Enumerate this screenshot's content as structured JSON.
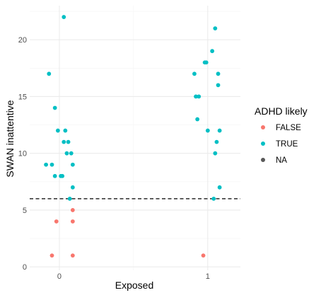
{
  "chart_data": {
    "type": "scatter",
    "title": "",
    "xlabel": "Exposed",
    "ylabel": "SWAN inattentive",
    "x_ticks": [
      0,
      1
    ],
    "x_tick_labels": [
      "0",
      "1"
    ],
    "y_ticks": [
      0,
      5,
      10,
      15,
      20
    ],
    "y_tick_labels": [
      "0",
      "5",
      "10",
      "15",
      "20"
    ],
    "xlim": [
      -0.2,
      1.22
    ],
    "ylim": [
      -0.3,
      23
    ],
    "grid": true,
    "legend": {
      "title": "ADHD likely",
      "placement": "right",
      "entries": [
        {
          "label": "FALSE",
          "color": "#F8766D"
        },
        {
          "label": "TRUE",
          "color": "#00BFC4"
        },
        {
          "label": "NA",
          "color": "#595959"
        }
      ]
    },
    "reference_line": {
      "y": 6,
      "style": "dashed",
      "color": "#000000"
    },
    "series": [
      {
        "name": "FALSE",
        "color": "#F8766D",
        "points": [
          {
            "x": -0.05,
            "y": 1
          },
          {
            "x": -0.02,
            "y": 4
          },
          {
            "x": 0.09,
            "y": 5
          },
          {
            "x": 0.09,
            "y": 4
          },
          {
            "x": 0.09,
            "y": 1
          },
          {
            "x": 0.97,
            "y": 1
          }
        ]
      },
      {
        "name": "TRUE",
        "color": "#00BFC4",
        "points": [
          {
            "x": 0.03,
            "y": 22
          },
          {
            "x": -0.07,
            "y": 17
          },
          {
            "x": -0.03,
            "y": 14
          },
          {
            "x": -0.01,
            "y": 12
          },
          {
            "x": 0.04,
            "y": 12
          },
          {
            "x": 0.03,
            "y": 11
          },
          {
            "x": 0.06,
            "y": 11
          },
          {
            "x": 0.05,
            "y": 10
          },
          {
            "x": 0.08,
            "y": 10
          },
          {
            "x": -0.09,
            "y": 9
          },
          {
            "x": -0.05,
            "y": 9
          },
          {
            "x": 0.09,
            "y": 9
          },
          {
            "x": -0.03,
            "y": 8
          },
          {
            "x": 0.01,
            "y": 8
          },
          {
            "x": 0.02,
            "y": 8
          },
          {
            "x": 0.09,
            "y": 7
          },
          {
            "x": 0.07,
            "y": 6
          },
          {
            "x": 1.05,
            "y": 21
          },
          {
            "x": 1.03,
            "y": 19
          },
          {
            "x": 0.98,
            "y": 18
          },
          {
            "x": 0.99,
            "y": 18
          },
          {
            "x": 0.91,
            "y": 17
          },
          {
            "x": 1.07,
            "y": 17
          },
          {
            "x": 1.07,
            "y": 16
          },
          {
            "x": 0.92,
            "y": 15
          },
          {
            "x": 0.94,
            "y": 15
          },
          {
            "x": 0.93,
            "y": 13
          },
          {
            "x": 1.0,
            "y": 12
          },
          {
            "x": 1.08,
            "y": 12
          },
          {
            "x": 1.06,
            "y": 11
          },
          {
            "x": 1.05,
            "y": 10
          },
          {
            "x": 1.08,
            "y": 7
          },
          {
            "x": 1.04,
            "y": 6
          }
        ]
      }
    ]
  }
}
